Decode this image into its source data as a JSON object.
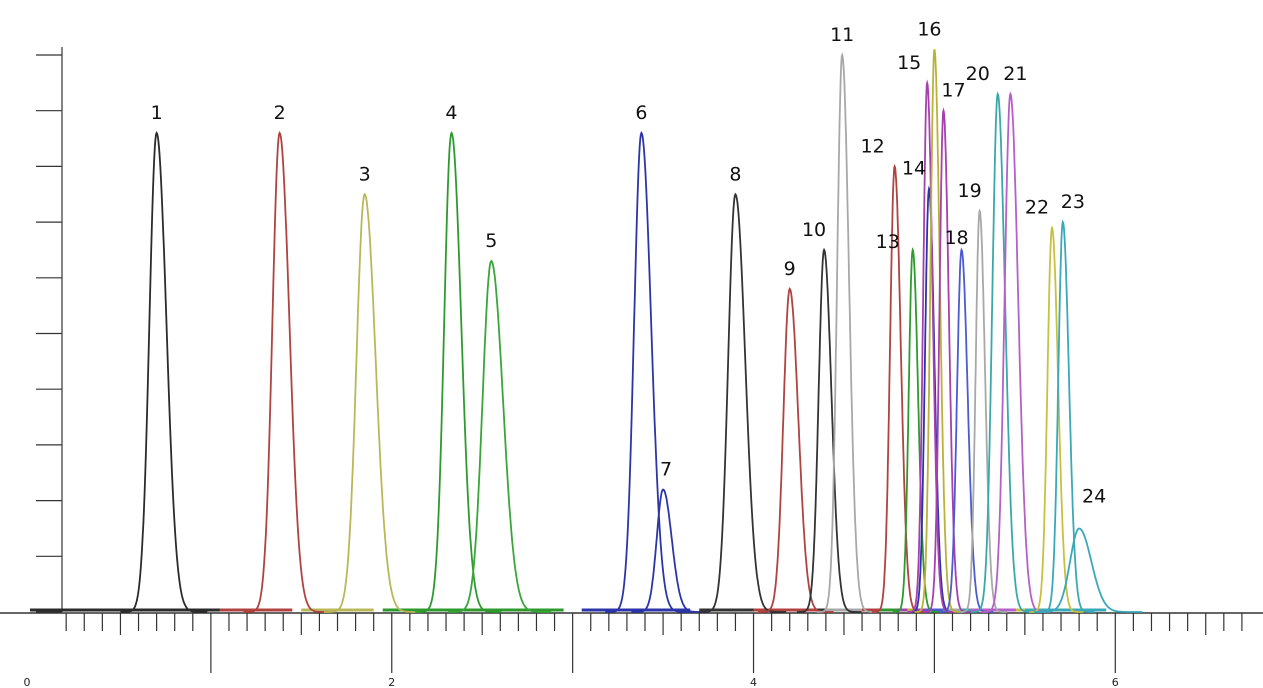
{
  "chart_data": {
    "type": "line",
    "title": "",
    "xlabel": "",
    "ylabel": "",
    "xlim": [
      0,
      6.8
    ],
    "ylim": [
      0,
      10
    ],
    "grid": false,
    "legend": "none",
    "x_ticks": [
      {
        "value": 0,
        "label": "0"
      },
      {
        "value": 2,
        "label": "2"
      },
      {
        "value": 4,
        "label": "4"
      },
      {
        "value": 6,
        "label": "6"
      }
    ],
    "y_ticks": [
      0,
      1,
      2,
      3,
      4,
      5,
      6,
      7,
      8,
      9,
      10
    ],
    "peaks": [
      {
        "label": "1",
        "rt": 0.7,
        "height": 8.6,
        "width": 0.04,
        "color": "#2b2b2b",
        "base_start": 0.0,
        "base_end": 1.05
      },
      {
        "label": "2",
        "rt": 1.38,
        "height": 8.6,
        "width": 0.04,
        "color": "#b0423f",
        "base_start": 1.05,
        "base_end": 1.45
      },
      {
        "label": "3",
        "rt": 1.85,
        "height": 7.5,
        "width": 0.045,
        "color": "#b8b859",
        "base_start": 1.5,
        "base_end": 1.9
      },
      {
        "label": "4",
        "rt": 2.33,
        "height": 8.6,
        "width": 0.04,
        "color": "#2e9a2e",
        "base_start": 1.95,
        "base_end": 2.95
      },
      {
        "label": "5",
        "rt": 2.55,
        "height": 6.3,
        "width": 0.048,
        "color": "#3aa53a",
        "base_start": 0,
        "base_end": 0
      },
      {
        "label": "6",
        "rt": 3.38,
        "height": 8.6,
        "width": 0.04,
        "color": "#2b35a8",
        "base_start": 3.05,
        "base_end": 3.65
      },
      {
        "label": "7",
        "rt": 3.5,
        "height": 2.2,
        "width": 0.035,
        "color": "#2b35a8",
        "base_start": 0,
        "base_end": 0
      },
      {
        "label": "8",
        "rt": 3.9,
        "height": 7.5,
        "width": 0.04,
        "color": "#333333",
        "base_start": 3.7,
        "base_end": 4.05
      },
      {
        "label": "9",
        "rt": 4.2,
        "height": 5.8,
        "width": 0.035,
        "color": "#b0423f",
        "base_start": 4.0,
        "base_end": 4.4
      },
      {
        "label": "10",
        "rt": 4.39,
        "height": 6.5,
        "width": 0.03,
        "color": "#333333",
        "base_start": 4.35,
        "base_end": 4.6
      },
      {
        "label": "11",
        "rt": 4.49,
        "height": 10.0,
        "width": 0.028,
        "color": "#a8a8a8",
        "base_start": 4.4,
        "base_end": 4.7
      },
      {
        "label": "12",
        "rt": 4.78,
        "height": 8.0,
        "width": 0.025,
        "color": "#b0423f",
        "base_start": 4.6,
        "base_end": 4.9
      },
      {
        "label": "13",
        "rt": 4.88,
        "height": 6.5,
        "width": 0.022,
        "color": "#2e9a2e",
        "base_start": 4.7,
        "base_end": 5.0
      },
      {
        "label": "14",
        "rt": 4.97,
        "height": 7.6,
        "width": 0.022,
        "color": "#2b35a8",
        "base_start": 4.8,
        "base_end": 5.1
      },
      {
        "label": "15",
        "rt": 4.96,
        "height": 9.5,
        "width": 0.022,
        "color": "#a63fb0",
        "base_start": 4.8,
        "base_end": 5.1
      },
      {
        "label": "16",
        "rt": 5.0,
        "height": 10.1,
        "width": 0.022,
        "color": "#b8b23a",
        "base_start": 4.85,
        "base_end": 5.15
      },
      {
        "label": "17",
        "rt": 5.05,
        "height": 9.0,
        "width": 0.022,
        "color": "#a63fb0",
        "base_start": 4.9,
        "base_end": 5.2
      },
      {
        "label": "18",
        "rt": 5.15,
        "height": 6.5,
        "width": 0.025,
        "color": "#4b5bd0",
        "base_start": 4.95,
        "base_end": 5.3
      },
      {
        "label": "19",
        "rt": 5.25,
        "height": 7.2,
        "width": 0.022,
        "color": "#a8a8a8",
        "base_start": 5.05,
        "base_end": 5.35
      },
      {
        "label": "20",
        "rt": 5.35,
        "height": 9.3,
        "width": 0.03,
        "color": "#3aa8a8",
        "base_start": 5.15,
        "base_end": 5.55
      },
      {
        "label": "21",
        "rt": 5.42,
        "height": 9.3,
        "width": 0.032,
        "color": "#b560c8",
        "base_start": 5.2,
        "base_end": 5.65
      },
      {
        "label": "22",
        "rt": 5.65,
        "height": 6.9,
        "width": 0.025,
        "color": "#c8c040",
        "base_start": 5.45,
        "base_end": 5.8
      },
      {
        "label": "23",
        "rt": 5.71,
        "height": 7.0,
        "width": 0.025,
        "color": "#3aa8b8",
        "base_start": 5.5,
        "base_end": 5.95
      },
      {
        "label": "24",
        "rt": 5.8,
        "height": 1.5,
        "width": 0.05,
        "color": "#3aa8b8",
        "base_start": 0,
        "base_end": 0
      }
    ]
  }
}
